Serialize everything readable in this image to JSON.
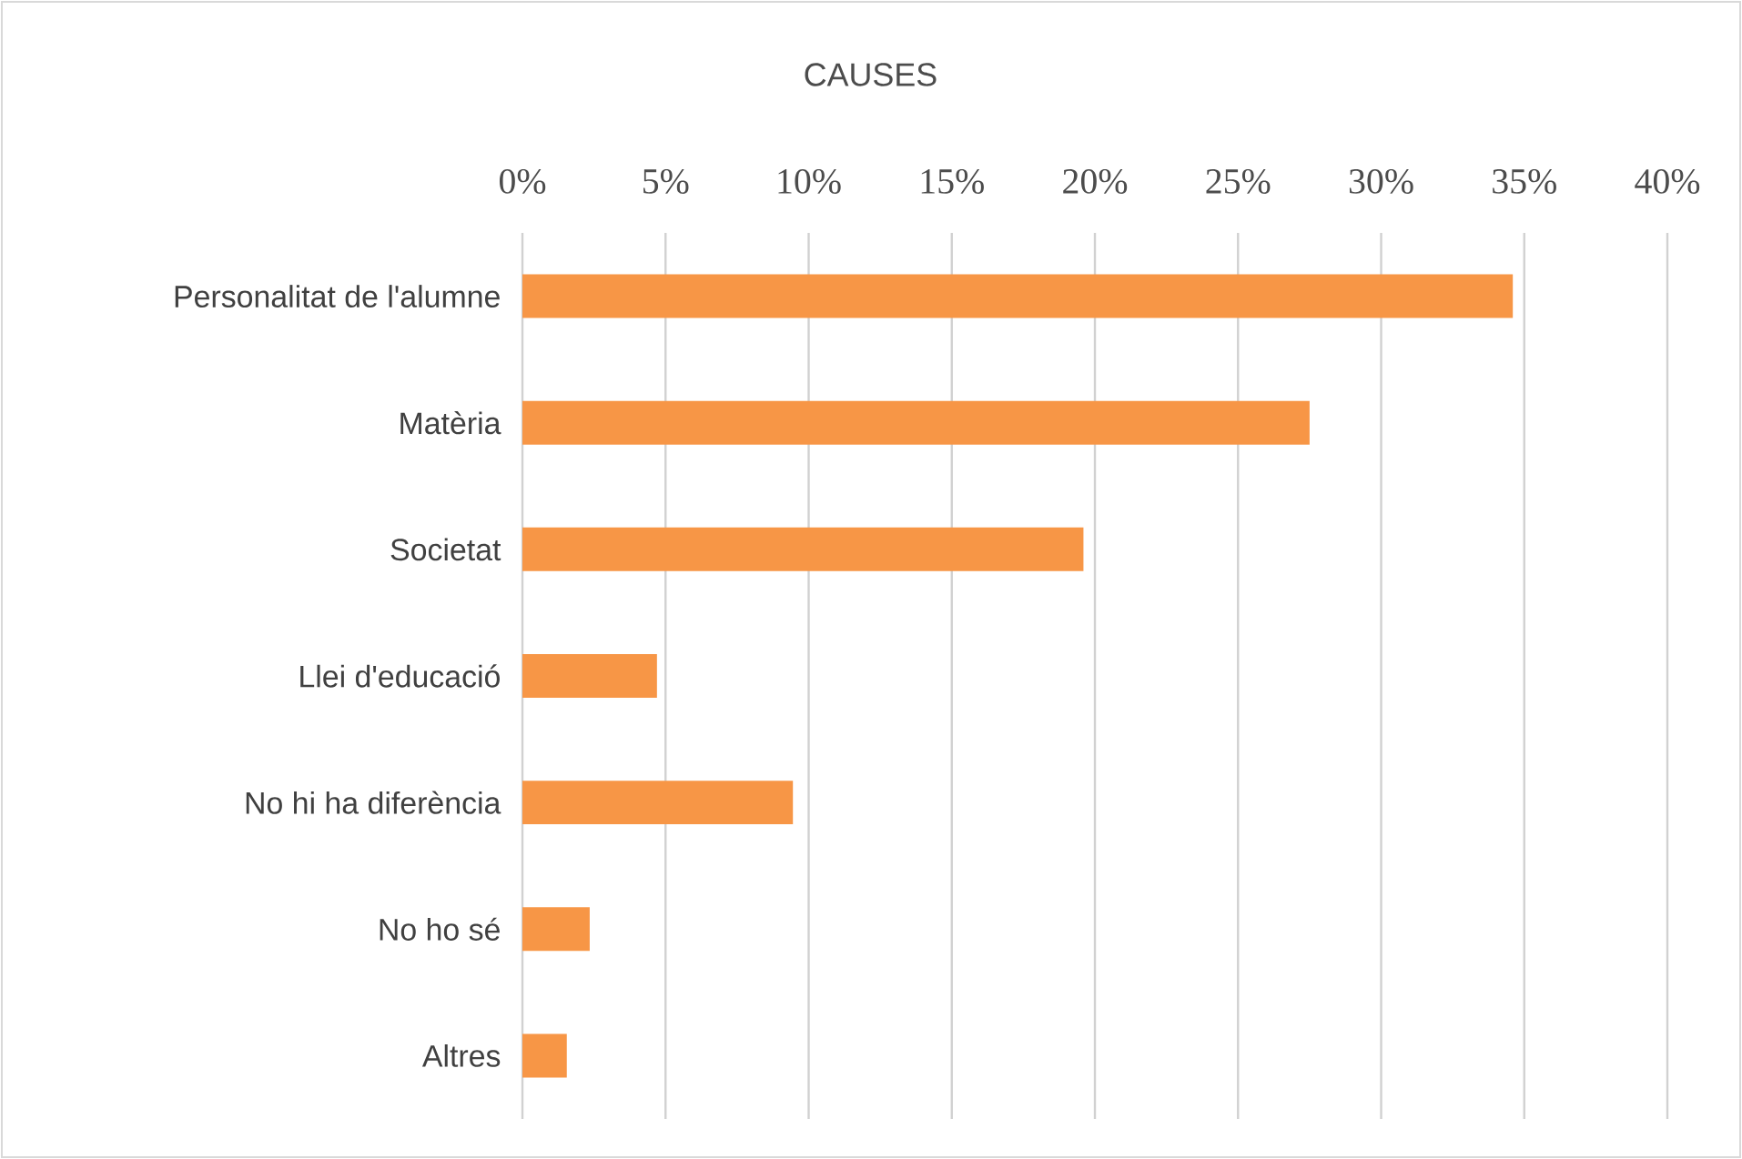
{
  "chart_data": {
    "type": "bar",
    "orientation": "horizontal",
    "title": "CAUSES",
    "categories": [
      "Personalitat de l'alumne",
      "Matèria",
      "Societat",
      "Llei d'educació",
      "No hi ha diferència",
      "No ho sé",
      "Altres"
    ],
    "values": [
      34.6,
      27.5,
      19.6,
      4.7,
      9.45,
      2.35,
      1.55
    ],
    "color": "#f79646",
    "xlim": [
      0,
      40
    ],
    "xticks": [
      {
        "value": 0,
        "label": "0%"
      },
      {
        "value": 5,
        "label": "5%"
      },
      {
        "value": 10,
        "label": "10%"
      },
      {
        "value": 15,
        "label": "15%"
      },
      {
        "value": 20,
        "label": "20%"
      },
      {
        "value": 25,
        "label": "25%"
      },
      {
        "value": 30,
        "label": "30%"
      },
      {
        "value": 35,
        "label": "35%"
      },
      {
        "value": 40,
        "label": "40%"
      }
    ],
    "grid": "x"
  }
}
